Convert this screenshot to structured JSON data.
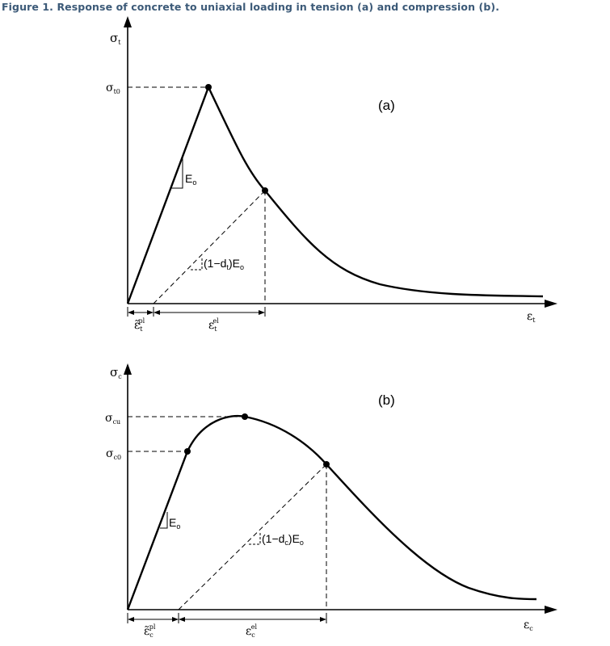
{
  "figure": {
    "title": "Figure 1. Response of concrete to uniaxial loading in tension (a) and compression (b)."
  },
  "tension": {
    "panel_label": "(a)",
    "y_axis_symbol": "σ",
    "y_axis_sub": "t",
    "x_axis_symbol": "ε",
    "x_axis_sub": "t",
    "peak_symbol": "σ",
    "peak_sub": "t0",
    "modulus_label": "E",
    "modulus_sub": "o",
    "unload_label_pre": "(1−d",
    "unload_label_sub": "t",
    "unload_label_post": ")E",
    "unload_label_post_sub": "o",
    "plastic_strain_symbol": "ε̃",
    "plastic_strain_sub": "t",
    "plastic_strain_sup": "pl",
    "elastic_strain_symbol": "ε",
    "elastic_strain_sub": "t",
    "elastic_strain_sup": "el"
  },
  "compression": {
    "panel_label": "(b)",
    "y_axis_symbol": "σ",
    "y_axis_sub": "c",
    "x_axis_symbol": "ε",
    "x_axis_sub": "c",
    "ultimate_symbol": "σ",
    "ultimate_sub": "cu",
    "initial_symbol": "σ",
    "initial_sub": "c0",
    "modulus_label": "E",
    "modulus_sub": "o",
    "unload_label_pre": "(1−d",
    "unload_label_sub": "c",
    "unload_label_post": ")E",
    "unload_label_post_sub": "o",
    "plastic_strain_symbol": "ε̃",
    "plastic_strain_sub": "c",
    "plastic_strain_sup": "pl",
    "elastic_strain_symbol": "ε",
    "elastic_strain_sub": "c",
    "elastic_strain_sup": "el"
  }
}
